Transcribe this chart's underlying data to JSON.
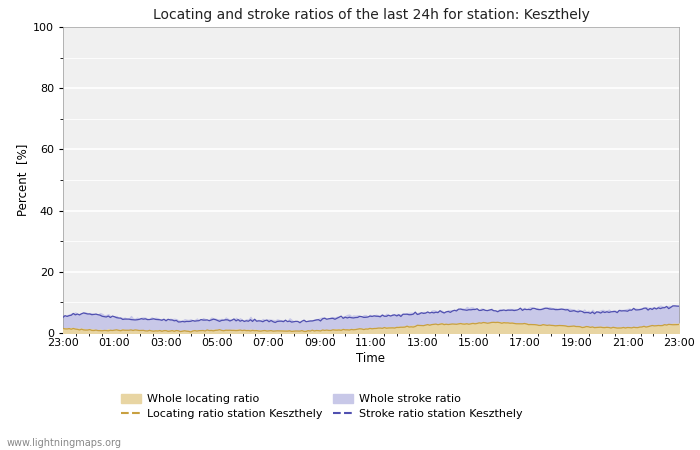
{
  "title": "Locating and stroke ratios of the last 24h for station: Keszthely",
  "xlabel": "Time",
  "ylabel": "Percent  [%]",
  "ylim": [
    0,
    100
  ],
  "x_labels": [
    "23:00",
    "01:00",
    "03:00",
    "05:00",
    "07:00",
    "09:00",
    "11:00",
    "13:00",
    "15:00",
    "17:00",
    "19:00",
    "21:00",
    "23:00"
  ],
  "background_color": "#ffffff",
  "plot_bg_color": "#f0f0f0",
  "grid_color": "#ffffff",
  "watermark": "www.lightningmaps.org",
  "whole_locating_ratio_color": "#e8d5a3",
  "whole_stroke_ratio_color": "#c8c8e8",
  "locating_line_color": "#c8a040",
  "stroke_line_color": "#5050b0",
  "whole_locating_ratio": [
    1.5,
    1.2,
    0.9,
    1.0,
    0.9,
    0.8,
    0.7,
    0.9,
    1.0,
    0.9,
    0.8,
    0.7,
    0.8,
    1.0,
    1.2,
    1.5,
    1.8,
    2.2,
    2.8,
    3.0,
    3.2,
    3.5,
    3.2,
    2.8,
    2.5,
    2.2,
    2.0,
    1.8,
    2.0,
    2.5,
    3.0
  ],
  "whole_stroke_ratio": [
    5.5,
    6.5,
    5.8,
    5.0,
    4.8,
    4.5,
    4.2,
    4.6,
    4.5,
    4.3,
    4.2,
    4.0,
    4.2,
    5.0,
    5.5,
    5.8,
    6.0,
    6.5,
    7.0,
    7.5,
    8.0,
    7.5,
    7.8,
    8.0,
    8.2,
    7.5,
    7.0,
    7.5,
    8.0,
    8.5,
    9.0
  ],
  "locating_ratio_station": [
    1.4,
    1.1,
    0.8,
    0.9,
    0.8,
    0.7,
    0.6,
    0.8,
    0.9,
    0.8,
    0.7,
    0.6,
    0.7,
    0.9,
    1.1,
    1.4,
    1.7,
    2.1,
    2.7,
    2.9,
    3.1,
    3.4,
    3.1,
    2.7,
    2.4,
    2.1,
    1.9,
    1.7,
    1.9,
    2.4,
    2.9
  ],
  "stroke_ratio_station": [
    5.2,
    6.2,
    5.5,
    4.7,
    4.5,
    4.2,
    3.9,
    4.3,
    4.2,
    4.0,
    3.9,
    3.7,
    3.9,
    4.7,
    5.2,
    5.5,
    5.7,
    6.2,
    6.7,
    7.2,
    7.7,
    7.2,
    7.5,
    7.7,
    7.9,
    7.2,
    6.7,
    7.2,
    7.7,
    8.2,
    8.7
  ]
}
